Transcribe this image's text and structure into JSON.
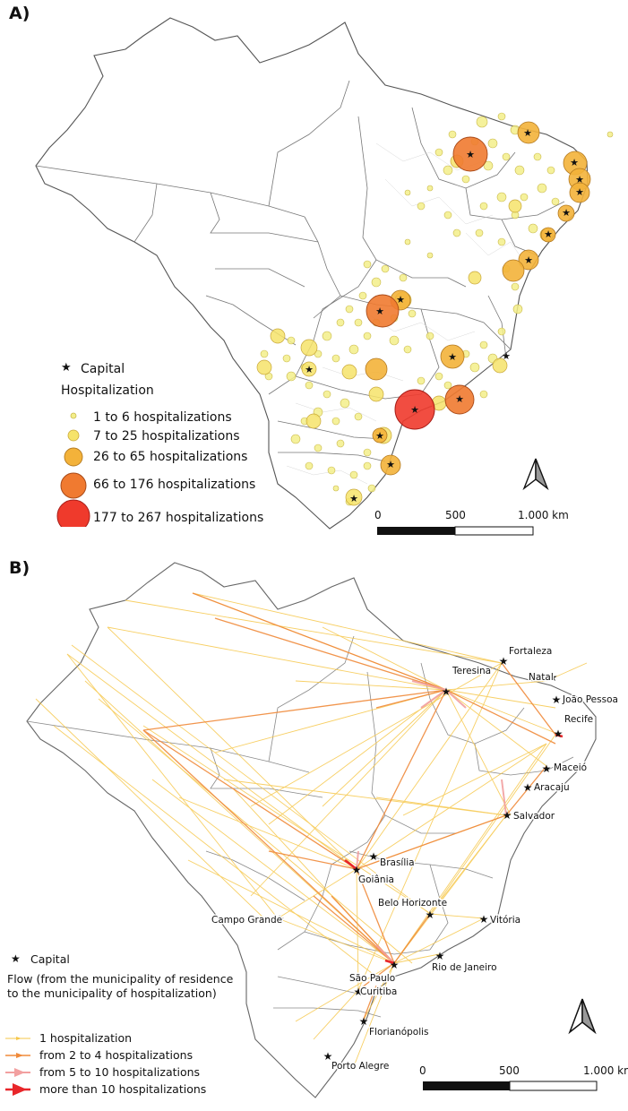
{
  "panel_a": {
    "label": "A)",
    "legend": {
      "capital": "Capital",
      "title": "Hospitalization",
      "classes": [
        {
          "label": "1 to 6 hospitalizations",
          "color": "#f3ee8a"
        },
        {
          "label": "7 to 25 hospitalizations",
          "color": "#f6e36a"
        },
        {
          "label": "26 to 65 hospitalizations",
          "color": "#f3b23a"
        },
        {
          "label": "66 to 176 hospitalizations",
          "color": "#f07a30"
        },
        {
          "label": "177 to 267 hospitalizations",
          "color": "#ef3a2c"
        }
      ]
    },
    "scale": {
      "tick0": "0",
      "tick1": "500",
      "tick2": "1.000 km"
    }
  },
  "panel_b": {
    "label": "B)",
    "legend": {
      "capital": "Capital",
      "title_line1": "Flow (from the municipality of residence",
      "title_line2": "to the municipality of hospitalization)",
      "classes": [
        {
          "label": "1 hospitalization",
          "color": "#f6c74a"
        },
        {
          "label": "from 2 to 4 hospitalizations",
          "color": "#f08a3a"
        },
        {
          "label": "from 5 to 10 hospitalizations",
          "color": "#f2a0a0"
        },
        {
          "label": "more than 10 hospitalizations",
          "color": "#e8262a"
        }
      ]
    },
    "cities": {
      "fortaleza": "Fortaleza",
      "teresina": "Teresina",
      "natal": "Natal",
      "joao_pessoa": "João Pessoa",
      "recife": "Recife",
      "maceio": "Maceió",
      "aracaju": "Aracaju",
      "salvador": "Salvador",
      "brasilia": "Brasília",
      "goiania": "Goiânia",
      "belo_horizonte": "Belo Horizonte",
      "vitoria": "Vitória",
      "campo_grande": "Campo Grande",
      "rio": "Rio de Janeiro",
      "sao_paulo": "São Paulo",
      "curitiba": "Curitiba",
      "florianopolis": "Florianópolis",
      "porto_alegre": "Porto Alegre"
    },
    "scale": {
      "tick0": "0",
      "tick1": "500",
      "tick2": "1.000 km"
    }
  }
}
